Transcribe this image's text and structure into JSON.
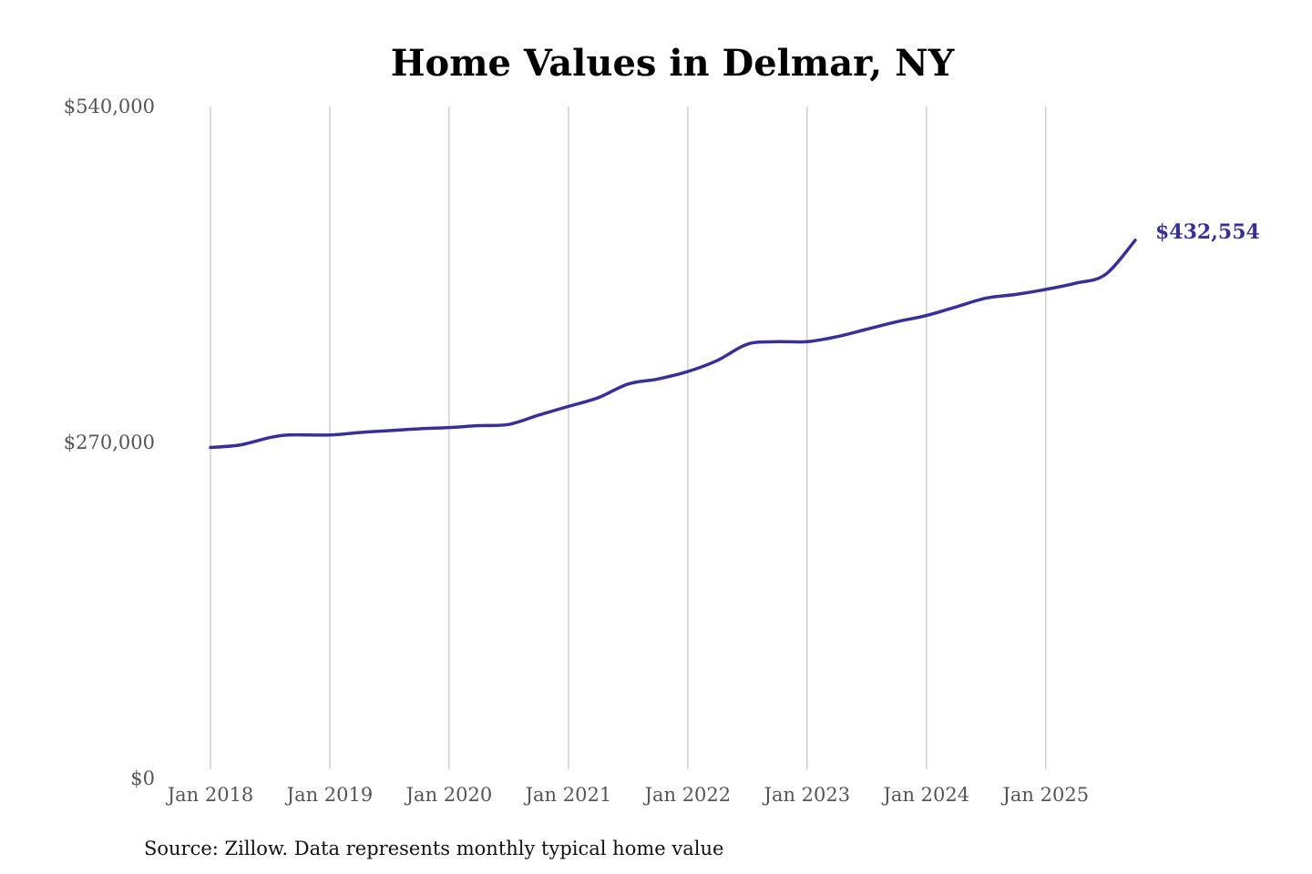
{
  "chart_data": {
    "type": "line",
    "title": "Home Values in Delmar, NY",
    "xlabel": "",
    "ylabel": "",
    "ylim": [
      0,
      540000
    ],
    "y_ticks": [
      {
        "value": 0,
        "label": "$0"
      },
      {
        "value": 270000,
        "label": "$270,000"
      },
      {
        "value": 540000,
        "label": "$540,000"
      }
    ],
    "x_ticks": [
      {
        "date": "2018-01",
        "label": "Jan 2018"
      },
      {
        "date": "2019-01",
        "label": "Jan 2019"
      },
      {
        "date": "2020-01",
        "label": "Jan 2020"
      },
      {
        "date": "2021-01",
        "label": "Jan 2021"
      },
      {
        "date": "2022-01",
        "label": "Jan 2022"
      },
      {
        "date": "2023-01",
        "label": "Jan 2023"
      },
      {
        "date": "2024-01",
        "label": "Jan 2024"
      },
      {
        "date": "2025-01",
        "label": "Jan 2025"
      }
    ],
    "xlim": [
      "2018-01",
      "2025-10"
    ],
    "grid": "vertical",
    "line_color": "#38309a",
    "end_label": "$432,554",
    "series": [
      {
        "points": [
          {
            "x": "2018-01",
            "y": 266000
          },
          {
            "x": "2018-04",
            "y": 268000
          },
          {
            "x": "2018-07",
            "y": 274000
          },
          {
            "x": "2018-09",
            "y": 276000
          },
          {
            "x": "2019-01",
            "y": 276000
          },
          {
            "x": "2019-04",
            "y": 278000
          },
          {
            "x": "2019-07",
            "y": 279500
          },
          {
            "x": "2019-10",
            "y": 281000
          },
          {
            "x": "2020-01",
            "y": 282000
          },
          {
            "x": "2020-04",
            "y": 283500
          },
          {
            "x": "2020-07",
            "y": 284500
          },
          {
            "x": "2020-10",
            "y": 292000
          },
          {
            "x": "2021-01",
            "y": 299000
          },
          {
            "x": "2021-04",
            "y": 306000
          },
          {
            "x": "2021-07",
            "y": 317000
          },
          {
            "x": "2021-10",
            "y": 321000
          },
          {
            "x": "2022-01",
            "y": 327000
          },
          {
            "x": "2022-04",
            "y": 336000
          },
          {
            "x": "2022-07",
            "y": 349000
          },
          {
            "x": "2022-10",
            "y": 351000
          },
          {
            "x": "2023-01",
            "y": 351000
          },
          {
            "x": "2023-04",
            "y": 355000
          },
          {
            "x": "2023-07",
            "y": 361000
          },
          {
            "x": "2023-10",
            "y": 367000
          },
          {
            "x": "2024-01",
            "y": 372000
          },
          {
            "x": "2024-04",
            "y": 379000
          },
          {
            "x": "2024-07",
            "y": 386000
          },
          {
            "x": "2024-10",
            "y": 389000
          },
          {
            "x": "2025-01",
            "y": 393000
          },
          {
            "x": "2025-04",
            "y": 398000
          },
          {
            "x": "2025-07",
            "y": 405000
          },
          {
            "x": "2025-10",
            "y": 432554
          }
        ]
      }
    ]
  },
  "source_note": "Source: Zillow. Data represents monthly typical home value"
}
